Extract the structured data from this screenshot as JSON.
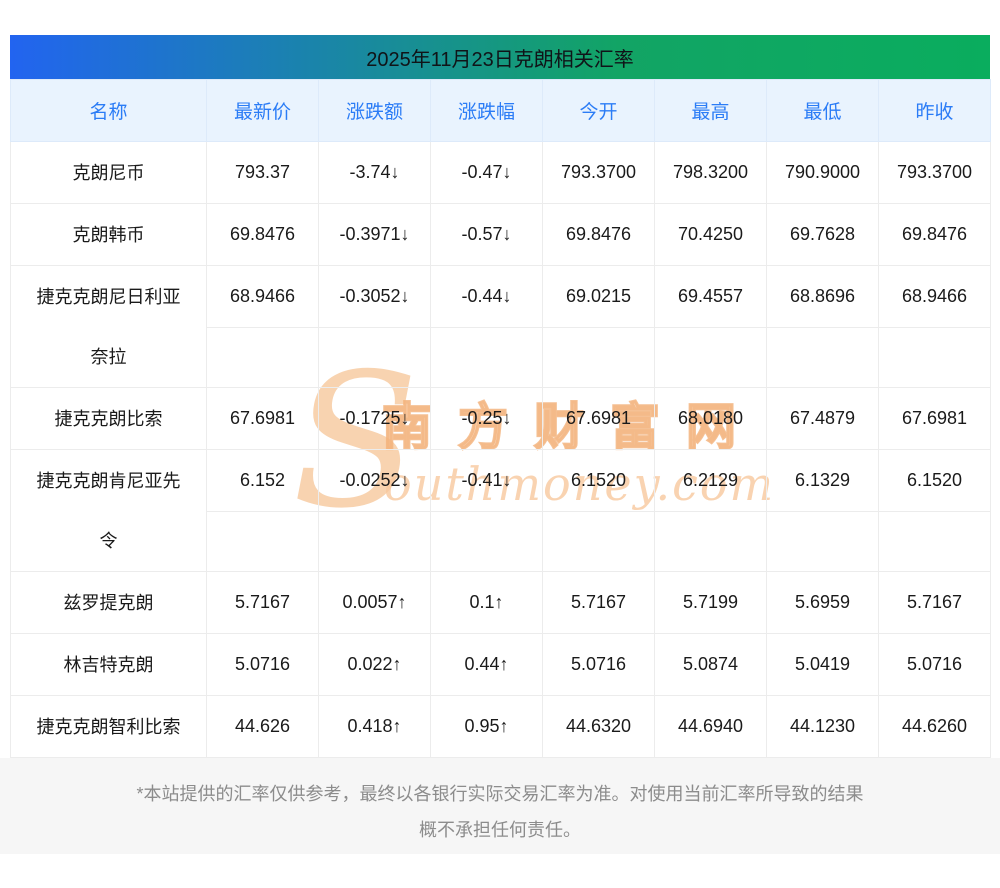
{
  "page": {
    "title": "2025年11月23日克朗相关汇率"
  },
  "table": {
    "columns": [
      "名称",
      "最新价",
      "涨跌额",
      "涨跌幅",
      "今开",
      "最高",
      "最低",
      "昨收"
    ],
    "rows": [
      {
        "name": "克朗尼币",
        "latest": "793.37",
        "change": "-3.74↓",
        "pct": "-0.47↓",
        "open": "793.3700",
        "high": "798.3200",
        "low": "790.9000",
        "close": "793.3700",
        "trend": "down",
        "two_line": false
      },
      {
        "name": "克朗韩币",
        "latest": "69.8476",
        "change": "-0.3971↓",
        "pct": "-0.57↓",
        "open": "69.8476",
        "high": "70.4250",
        "low": "69.7628",
        "close": "69.8476",
        "trend": "down",
        "two_line": false
      },
      {
        "name": "捷克克朗尼日利亚奈拉",
        "latest": "68.9466",
        "change": "-0.3052↓",
        "pct": "-0.44↓",
        "open": "69.0215",
        "high": "69.4557",
        "low": "68.8696",
        "close": "68.9466",
        "trend": "down",
        "two_line": true
      },
      {
        "name": "捷克克朗比索",
        "latest": "67.6981",
        "change": "-0.1725↓",
        "pct": "-0.25↓",
        "open": "67.6981",
        "high": "68.0180",
        "low": "67.4879",
        "close": "67.6981",
        "trend": "down",
        "two_line": false
      },
      {
        "name": "捷克克朗肯尼亚先令",
        "latest": "6.152",
        "change": "-0.0252↓",
        "pct": "-0.41↓",
        "open": "6.1520",
        "high": "6.2129",
        "low": "6.1329",
        "close": "6.1520",
        "trend": "down",
        "two_line": true
      },
      {
        "name": "兹罗提克朗",
        "latest": "5.7167",
        "change": "0.0057↑",
        "pct": "0.1↑",
        "open": "5.7167",
        "high": "5.7199",
        "low": "5.6959",
        "close": "5.7167",
        "trend": "up",
        "two_line": false
      },
      {
        "name": "林吉特克朗",
        "latest": "5.0716",
        "change": "0.022↑",
        "pct": "0.44↑",
        "open": "5.0716",
        "high": "5.0874",
        "low": "5.0419",
        "close": "5.0716",
        "trend": "up",
        "two_line": false
      },
      {
        "name": "捷克克朗智利比索",
        "latest": "44.626",
        "change": "0.418↑",
        "pct": "0.95↑",
        "open": "44.6320",
        "high": "44.6940",
        "low": "44.1230",
        "close": "44.6260",
        "trend": "up",
        "two_line": false
      }
    ]
  },
  "watermark": {
    "symbol": "S",
    "cn": "南方财富网",
    "en": "outhmoney.com"
  },
  "footer": {
    "lines": [
      "*本站提供的汇率仅供参考，最终以各银行实际交易汇率为准。对使用当前汇率所导致的结果",
      "概不承担任何责任。"
    ]
  },
  "colors": {
    "up": "#f53b3b",
    "down": "#18a05a",
    "header_text": "#2b7cf6",
    "header_bg": "#e9f3fe",
    "title_gradient_start": "#2264f0",
    "title_gradient_end": "#0aad5e"
  }
}
